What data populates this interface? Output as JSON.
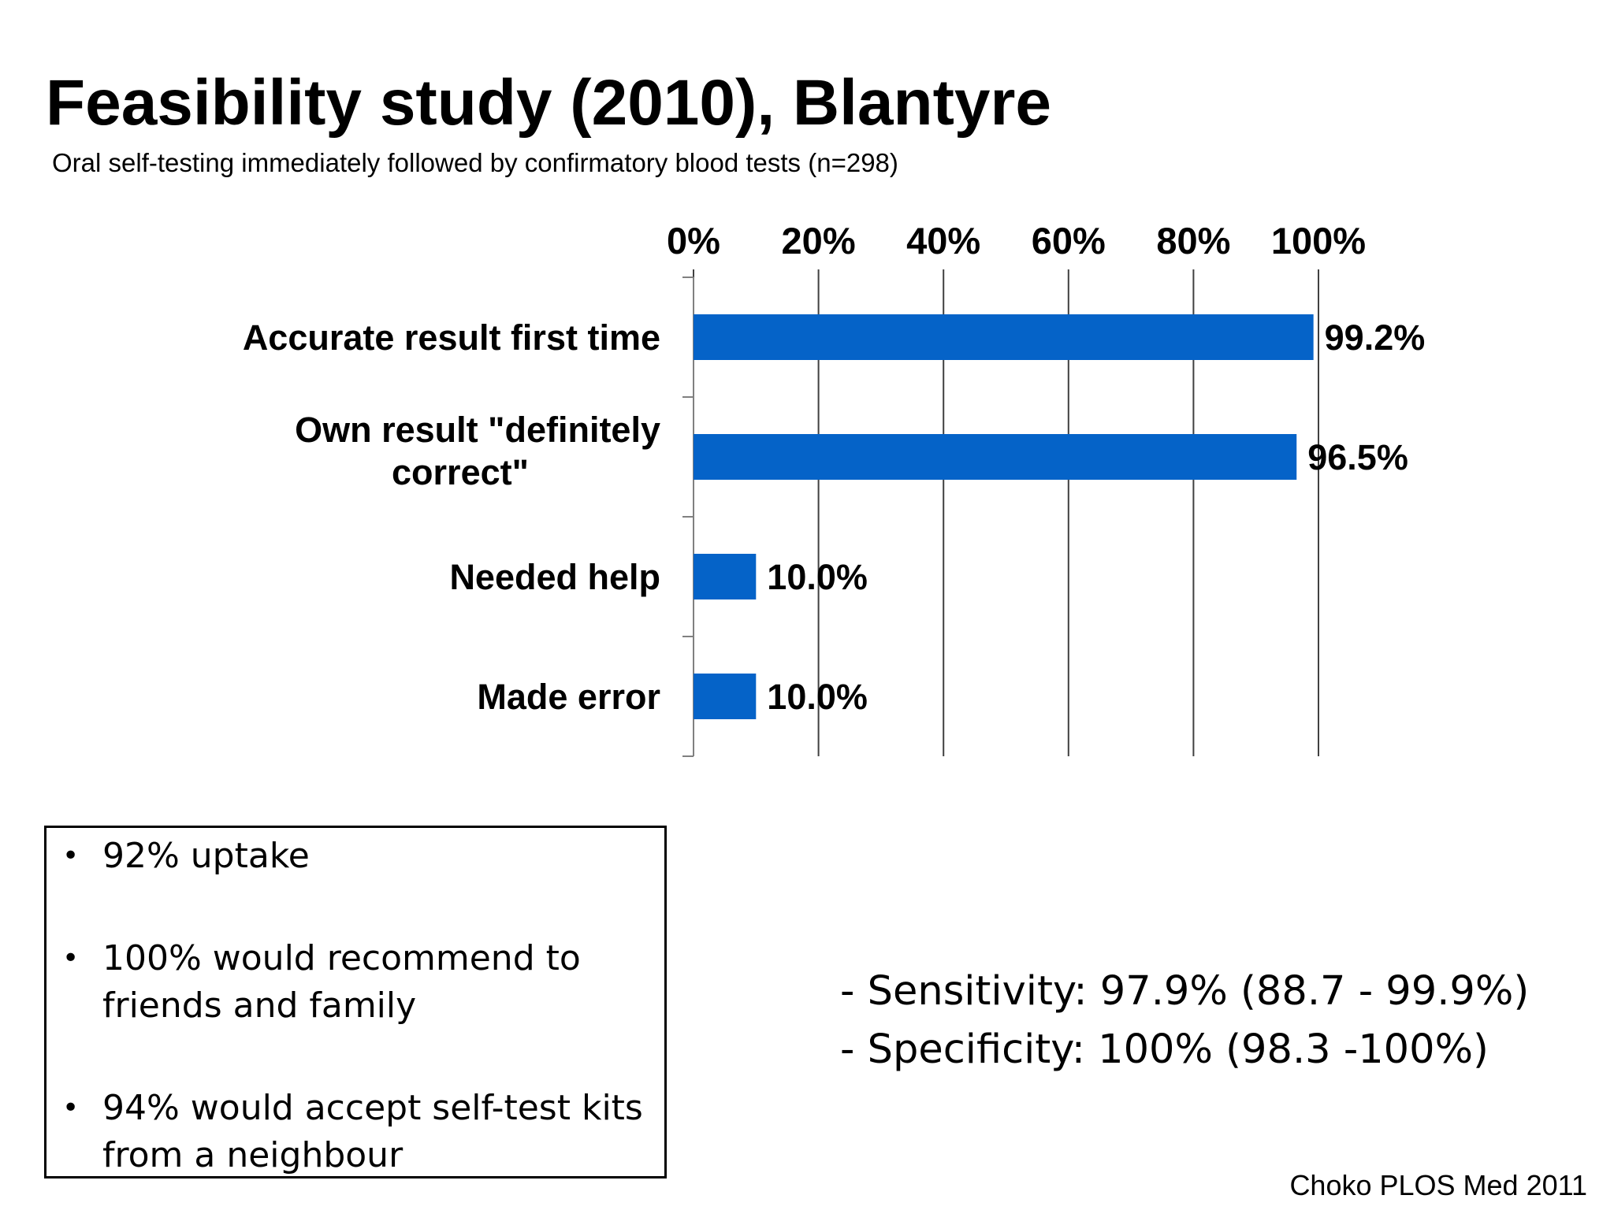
{
  "slide": {
    "title": "Feasibility study (2010), Blantyre",
    "subtitle": "Oral self-testing immediately followed by confirmatory blood tests (n=298)",
    "bullets": [
      "92% uptake",
      "100% would recommend to friends and family",
      "94% would accept self-test kits from a neighbour"
    ],
    "stats": [
      "- Sensitivity: 97.9% (88.7 -  99.9%)",
      "- Specificity: 100%  (98.3 -100%)"
    ],
    "citation": "Choko PLOS Med 2011"
  },
  "chart_data": {
    "type": "bar",
    "orientation": "horizontal",
    "categories": [
      "Accurate result first time",
      "Own result \"definitely correct\"",
      "Needed help",
      "Made error"
    ],
    "category_lines": [
      [
        "Accurate result first time"
      ],
      [
        "Own result \"definitely",
        "correct\""
      ],
      [
        "Needed help"
      ],
      [
        "Made error"
      ]
    ],
    "values": [
      99.2,
      96.5,
      10.0,
      10.0
    ],
    "value_labels": [
      "99.2%",
      "96.5%",
      "10.0%",
      "10.0%"
    ],
    "xlim": [
      0,
      100
    ],
    "xticks": [
      0,
      20,
      40,
      60,
      80,
      100
    ],
    "xtick_labels": [
      "0%",
      "20%",
      "40%",
      "60%",
      "80%",
      "100%"
    ],
    "axis_position": "top",
    "grid": true,
    "bar_color": "#0563C8"
  }
}
